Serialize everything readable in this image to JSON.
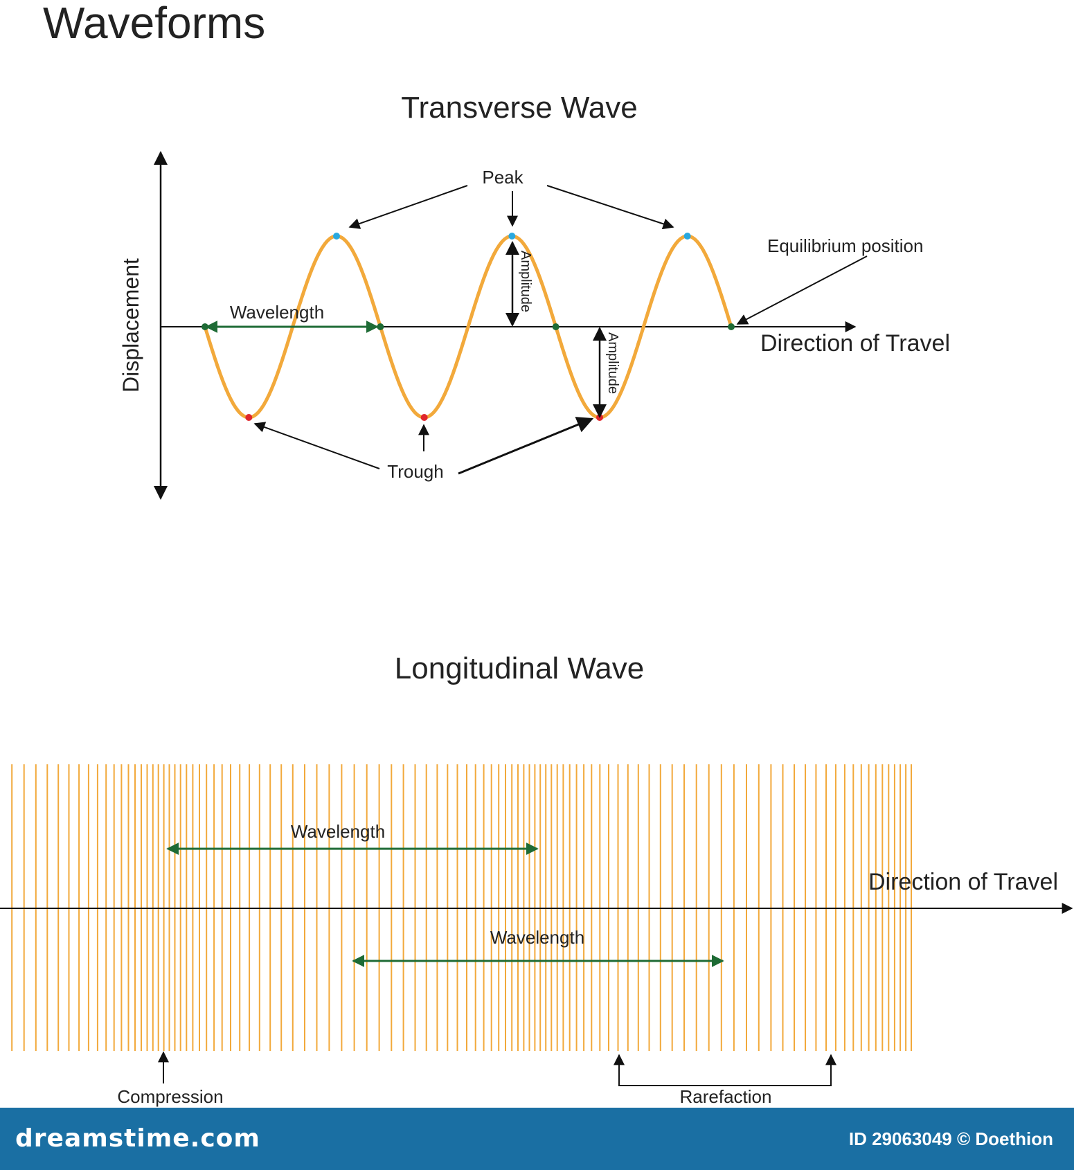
{
  "page_title": "Waveforms",
  "transverse": {
    "title": "Transverse Wave",
    "y_label": "Displacement",
    "x_label": "Direction of Travel",
    "peak_label": "Peak",
    "trough_label": "Trough",
    "equilibrium_label": "Equilibrium position",
    "wavelength_label": "Wavelength",
    "amplitude_label": "Amplitude",
    "wavelengths_shown": 3.0,
    "colors": {
      "wave": "#f2a93b",
      "peak": "#29a8df",
      "trough": "#e0262b",
      "node": "#1e6b35",
      "wavelength_arrow": "#1e6b35"
    }
  },
  "longitudinal": {
    "title": "Longitudinal Wave",
    "x_label": "Direction of Travel",
    "wavelength_label_1": "Wavelength",
    "wavelength_label_2": "Wavelength",
    "compression_label": "Compression",
    "rarefaction_label": "Rarefaction",
    "colors": {
      "lines": "#f2a93b",
      "arrow": "#1e6b35"
    }
  },
  "footer": {
    "brand": "dreamstime.com",
    "credit": "ID 29063049 © Doethion"
  }
}
